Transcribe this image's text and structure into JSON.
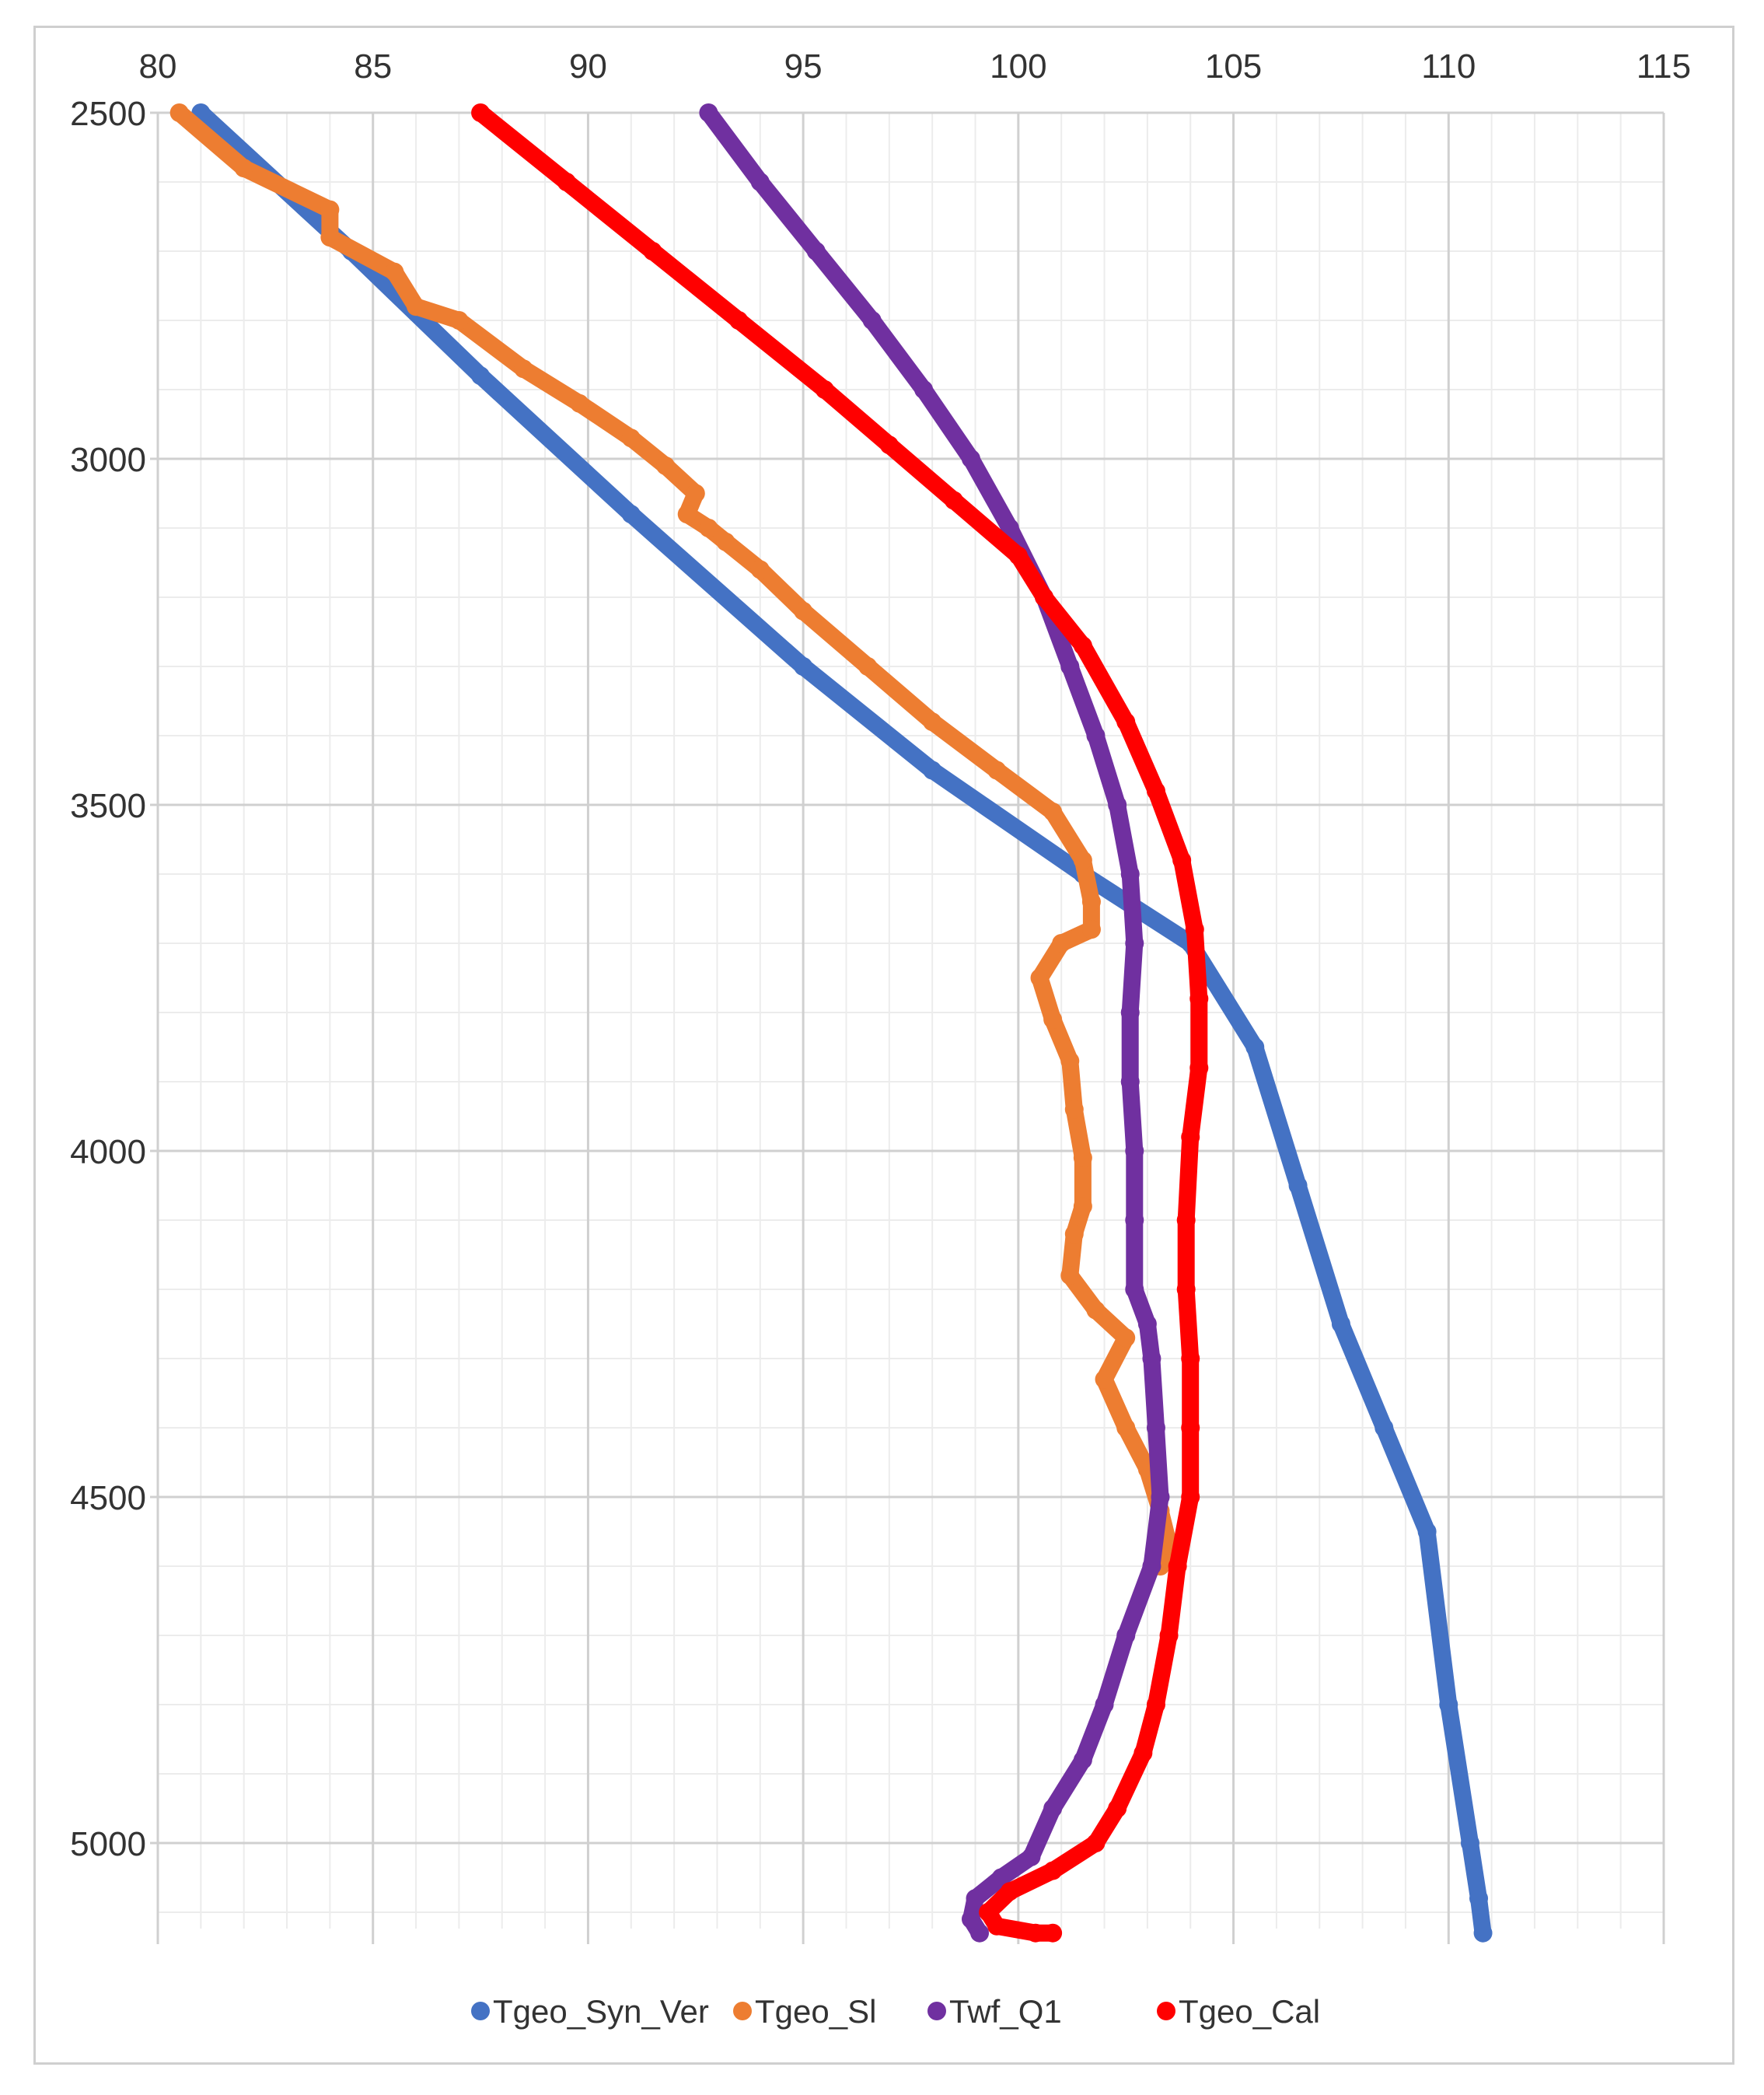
{
  "chart_data": {
    "type": "scatter",
    "title": "",
    "xlabel": "",
    "ylabel": "",
    "x_axis_position": "top",
    "y_axis_reversed": true,
    "xlim": [
      80,
      115
    ],
    "ylim": [
      2500,
      5130
    ],
    "x_ticks": [
      "80",
      "85",
      "90",
      "95",
      "100",
      "105",
      "110",
      "115"
    ],
    "y_ticks": [
      "2500",
      "3000",
      "3500",
      "4000",
      "4500",
      "5000"
    ],
    "grid": true,
    "legend_position": "bottom",
    "series": [
      {
        "name": "Tgeo_Syn_Ver",
        "color": "#4472c4",
        "points": [
          [
            81.0,
            2500
          ],
          [
            84.5,
            2700
          ],
          [
            87.5,
            2880
          ],
          [
            91.0,
            3080
          ],
          [
            95.0,
            3300
          ],
          [
            98.0,
            3450
          ],
          [
            101.5,
            3600
          ],
          [
            104.0,
            3700
          ],
          [
            105.5,
            3850
          ],
          [
            106.5,
            4050
          ],
          [
            107.5,
            4250
          ],
          [
            108.5,
            4400
          ],
          [
            109.5,
            4550
          ],
          [
            110.0,
            4800
          ],
          [
            110.5,
            5000
          ],
          [
            110.7,
            5080
          ],
          [
            110.8,
            5130
          ]
        ]
      },
      {
        "name": "Tgeo_Sl",
        "color": "#ed7d31",
        "points": [
          [
            80.5,
            2500
          ],
          [
            82.0,
            2580
          ],
          [
            84.0,
            2640
          ],
          [
            84.0,
            2680
          ],
          [
            85.5,
            2730
          ],
          [
            86.0,
            2780
          ],
          [
            87.0,
            2800
          ],
          [
            88.5,
            2870
          ],
          [
            89.8,
            2920
          ],
          [
            91.0,
            2970
          ],
          [
            91.8,
            3010
          ],
          [
            92.5,
            3050
          ],
          [
            92.3,
            3080
          ],
          [
            92.8,
            3100
          ],
          [
            93.2,
            3120
          ],
          [
            94.0,
            3160
          ],
          [
            95.0,
            3220
          ],
          [
            96.5,
            3300
          ],
          [
            98.0,
            3380
          ],
          [
            99.5,
            3450
          ],
          [
            100.8,
            3510
          ],
          [
            101.5,
            3580
          ],
          [
            101.7,
            3640
          ],
          [
            101.7,
            3680
          ],
          [
            101.0,
            3700
          ],
          [
            100.5,
            3750
          ],
          [
            100.8,
            3810
          ],
          [
            101.2,
            3870
          ],
          [
            101.3,
            3940
          ],
          [
            101.5,
            4010
          ],
          [
            101.5,
            4080
          ],
          [
            101.3,
            4120
          ],
          [
            101.2,
            4180
          ],
          [
            101.8,
            4230
          ],
          [
            102.5,
            4270
          ],
          [
            102.0,
            4330
          ],
          [
            102.5,
            4400
          ],
          [
            103.0,
            4460
          ],
          [
            103.3,
            4520
          ],
          [
            103.5,
            4570
          ],
          [
            103.3,
            4600
          ]
        ]
      },
      {
        "name": "Twf_Q1",
        "color": "#7030a0",
        "points": [
          [
            92.8,
            2500
          ],
          [
            94.0,
            2600
          ],
          [
            95.3,
            2700
          ],
          [
            96.6,
            2800
          ],
          [
            97.8,
            2900
          ],
          [
            98.9,
            3000
          ],
          [
            99.8,
            3100
          ],
          [
            100.6,
            3200
          ],
          [
            101.2,
            3300
          ],
          [
            101.8,
            3400
          ],
          [
            102.3,
            3500
          ],
          [
            102.6,
            3600
          ],
          [
            102.7,
            3700
          ],
          [
            102.6,
            3800
          ],
          [
            102.6,
            3900
          ],
          [
            102.7,
            4000
          ],
          [
            102.7,
            4100
          ],
          [
            102.7,
            4200
          ],
          [
            103.0,
            4250
          ],
          [
            103.1,
            4300
          ],
          [
            103.2,
            4400
          ],
          [
            103.3,
            4500
          ],
          [
            103.1,
            4600
          ],
          [
            102.5,
            4700
          ],
          [
            102.0,
            4800
          ],
          [
            101.5,
            4880
          ],
          [
            100.8,
            4950
          ],
          [
            100.3,
            5020
          ],
          [
            99.6,
            5050
          ],
          [
            99.0,
            5080
          ],
          [
            98.9,
            5110
          ],
          [
            99.1,
            5130
          ]
        ]
      },
      {
        "name": "Tgeo_Cal",
        "color": "#ff0000",
        "points": [
          [
            87.5,
            2500
          ],
          [
            89.5,
            2600
          ],
          [
            91.5,
            2700
          ],
          [
            93.5,
            2800
          ],
          [
            95.5,
            2900
          ],
          [
            97.0,
            2980
          ],
          [
            98.5,
            3060
          ],
          [
            100.0,
            3140
          ],
          [
            100.6,
            3200
          ],
          [
            101.5,
            3270
          ],
          [
            102.5,
            3380
          ],
          [
            103.2,
            3480
          ],
          [
            103.8,
            3580
          ],
          [
            104.1,
            3680
          ],
          [
            104.2,
            3780
          ],
          [
            104.2,
            3880
          ],
          [
            104.0,
            3980
          ],
          [
            103.9,
            4100
          ],
          [
            103.9,
            4200
          ],
          [
            104.0,
            4300
          ],
          [
            104.0,
            4400
          ],
          [
            104.0,
            4500
          ],
          [
            103.7,
            4600
          ],
          [
            103.5,
            4700
          ],
          [
            103.2,
            4800
          ],
          [
            102.9,
            4870
          ],
          [
            102.3,
            4950
          ],
          [
            101.8,
            5000
          ],
          [
            100.8,
            5040
          ],
          [
            99.8,
            5070
          ],
          [
            99.3,
            5100
          ],
          [
            99.5,
            5120
          ],
          [
            100.4,
            5130
          ],
          [
            100.8,
            5130
          ]
        ]
      }
    ]
  }
}
